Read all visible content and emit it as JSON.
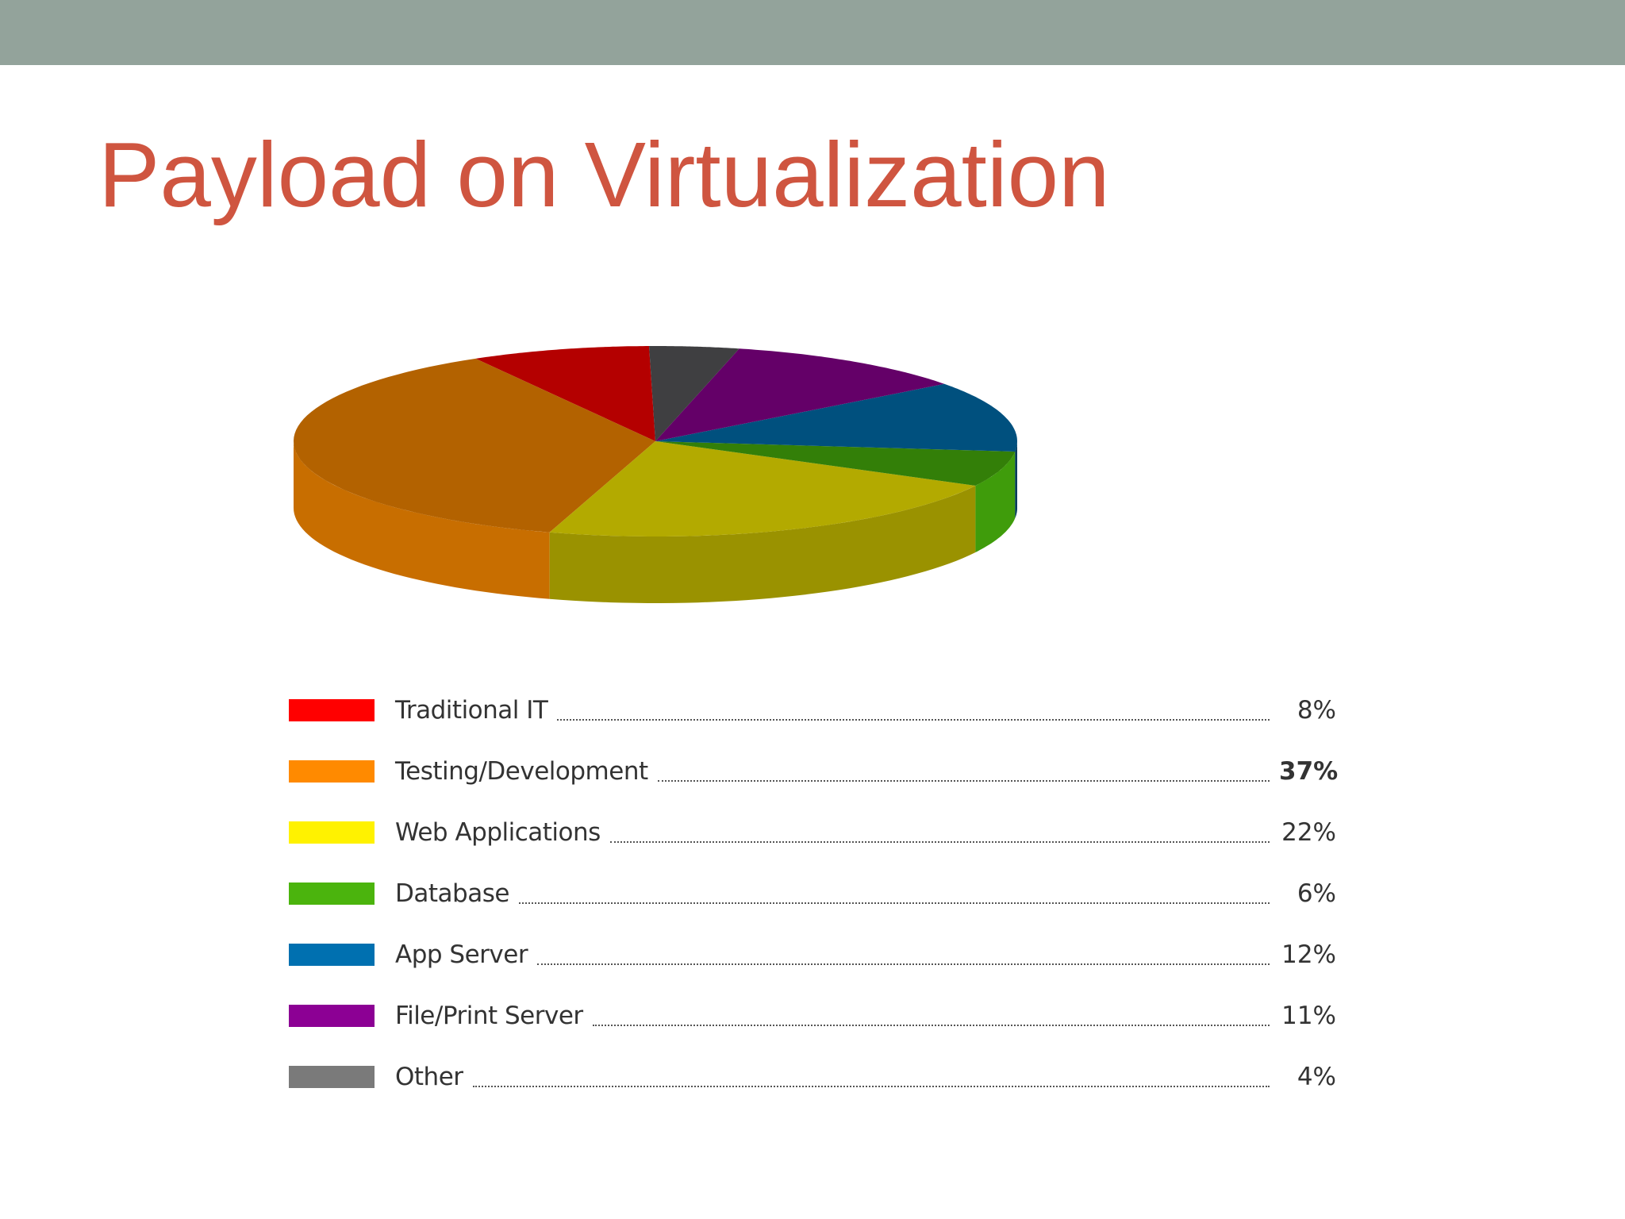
{
  "slide": {
    "title": "Payload on Virtualization",
    "header_bar_color": "#93a39b",
    "title_color": "#cf5540"
  },
  "chart_data": {
    "type": "pie",
    "style": "3d",
    "title": "",
    "categories": [
      "Traditional IT",
      "Testing/Development",
      "Web Applications",
      "Database",
      "App Server",
      "File/Print Server",
      "Other"
    ],
    "values": [
      8,
      37,
      22,
      6,
      12,
      11,
      4
    ],
    "value_labels": [
      "8%",
      "37%",
      "22%",
      "6%",
      "12%",
      "11%",
      "4%"
    ],
    "emphasized": [
      "Testing/Development"
    ],
    "legend_position": "bottom",
    "colors": {
      "Traditional IT": "#ff0000",
      "Testing/Development": "#ff8a00",
      "Web Applications": "#fff200",
      "Database": "#4bb40d",
      "App Server": "#0070b0",
      "File/Print Server": "#8c0094",
      "Other": "#7a7a7a"
    },
    "slice_top_colors": {
      "Traditional IT": "#b40000",
      "Testing/Development": "#b36200",
      "Web Applications": "#b3aa00",
      "Database": "#337f08",
      "App Server": "#00507e",
      "File/Print Server": "#640068",
      "Other": "#3f3f41"
    },
    "slice_side_colors": {
      "Traditional IT": "#8c0000",
      "Testing/Development": "#c86e00",
      "Web Applications": "#9a9200",
      "Database": "#3f9c0b",
      "App Server": "#003a5c",
      "File/Print Server": "#6e0076",
      "Other": "#4c4c4e"
    }
  }
}
